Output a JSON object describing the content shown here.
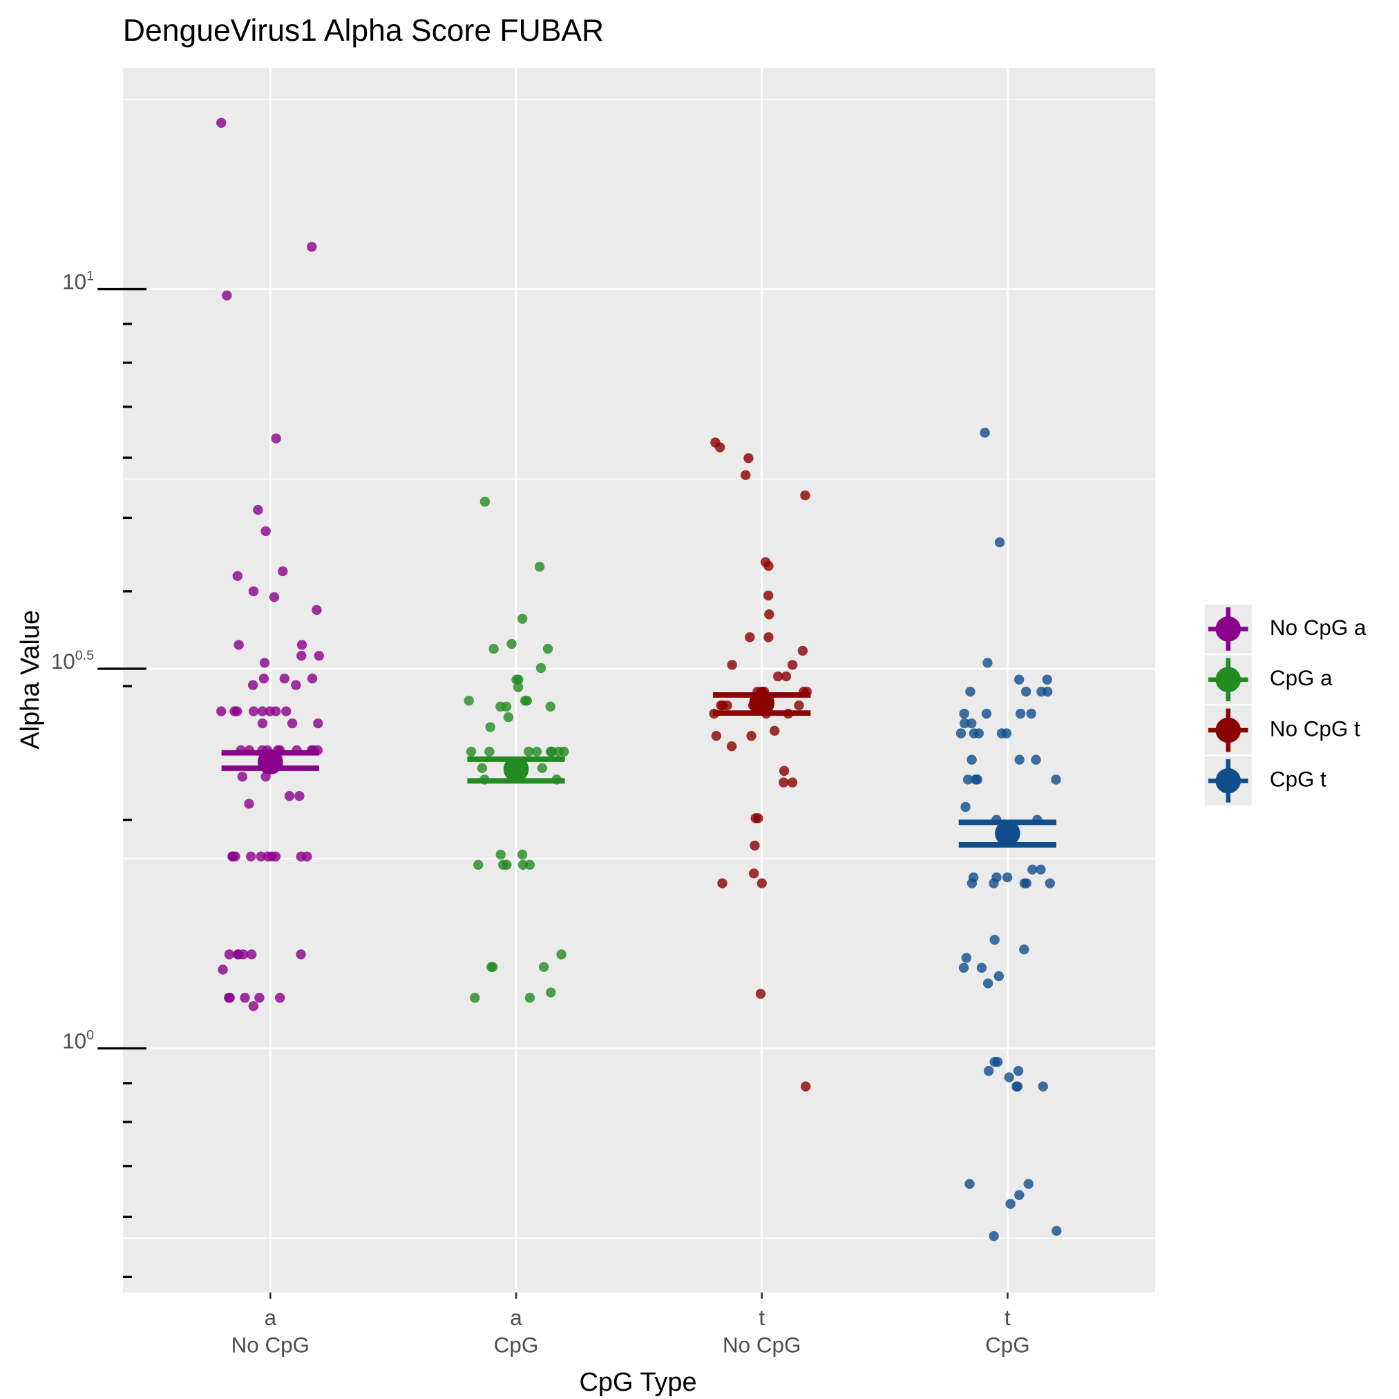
{
  "chart_data": {
    "type": "strip",
    "title": "DengueVirus1 Alpha Score FUBAR",
    "x_label": "CpG Type",
    "y_label": "Alpha Value",
    "categories": [
      [
        "a",
        "No CpG"
      ],
      [
        "a",
        "CpG"
      ],
      [
        "t",
        "No CpG"
      ],
      [
        "t",
        "CpG"
      ]
    ],
    "log_y": true,
    "grid": true,
    "legend_position": "right",
    "ylim": [
      0.4772,
      19.57
    ],
    "yticks": [
      {
        "value": 1,
        "label": "10^0"
      },
      {
        "value": 3.1623,
        "label": "10^0.5"
      },
      {
        "value": 10,
        "label": "10^1"
      }
    ],
    "yminorticks": [
      0.5,
      0.6,
      0.7,
      0.8,
      0.9,
      2,
      3,
      4,
      5,
      6,
      7,
      8,
      9
    ],
    "yminorgrid": [
      0.5623,
      1.7783,
      5.6234,
      17.783
    ],
    "series": [
      {
        "name": "No CpG a",
        "color": "#8b008b",
        "mean": 2.385,
        "ci": [
          2.339,
          2.451
        ],
        "values": [
          16.56,
          11.37,
          9.81,
          6.36,
          5.12,
          4.8,
          4.25,
          4.19,
          4.0,
          3.93,
          3.78,
          3.4,
          3.4,
          3.29,
          3.29,
          3.22,
          3.07,
          3.07,
          3.07,
          3.01,
          3.01,
          2.78,
          2.78,
          2.78,
          2.78,
          2.78,
          2.78,
          2.78,
          2.78,
          2.68,
          2.68,
          2.68,
          2.47,
          2.47,
          2.47,
          2.47,
          2.47,
          2.47,
          2.47,
          2.47,
          2.47,
          2.47,
          2.28,
          2.28,
          2.15,
          2.15,
          2.1,
          1.79,
          1.79,
          1.79,
          1.79,
          1.79,
          1.79,
          1.79,
          1.79,
          1.79,
          1.79,
          1.33,
          1.33,
          1.33,
          1.33,
          1.33,
          1.33,
          1.27,
          1.166,
          1.166,
          1.166,
          1.166,
          1.166,
          1.137
        ]
      },
      {
        "name": "CpG a",
        "color": "#228b22",
        "mean": 2.333,
        "ci": [
          2.251,
          2.404
        ],
        "values": [
          5.25,
          4.31,
          3.68,
          3.41,
          3.36,
          3.36,
          3.17,
          3.06,
          3.06,
          2.99,
          2.87,
          2.87,
          2.87,
          2.82,
          2.82,
          2.82,
          2.73,
          2.65,
          2.46,
          2.46,
          2.46,
          2.46,
          2.46,
          2.46,
          2.46,
          2.46,
          2.34,
          2.34,
          2.26,
          2.26,
          1.8,
          1.8,
          1.745,
          1.745,
          1.745,
          1.745,
          1.745,
          1.33,
          1.28,
          1.28,
          1.28,
          1.185,
          1.166,
          1.166
        ]
      },
      {
        "name": "No CpG t",
        "color": "#8b0000",
        "mean": 2.85,
        "ci": [
          2.765,
          2.921
        ],
        "values": [
          6.28,
          6.19,
          5.99,
          5.69,
          5.35,
          4.37,
          4.32,
          3.95,
          3.73,
          3.48,
          3.48,
          3.34,
          3.2,
          3.2,
          3.09,
          3.09,
          2.95,
          2.95,
          2.95,
          2.95,
          2.95,
          2.95,
          2.83,
          2.83,
          2.83,
          2.83,
          2.83,
          2.83,
          2.76,
          2.76,
          2.76,
          2.62,
          2.58,
          2.58,
          2.5,
          2.32,
          2.24,
          2.24,
          2.01,
          2.01,
          1.85,
          1.7,
          1.65,
          1.65,
          1.18,
          0.891
        ]
      },
      {
        "name": "CpG t",
        "color": "#104e8b",
        "mean": 1.92,
        "ci": [
          1.854,
          1.985
        ],
        "values": [
          6.47,
          4.64,
          3.22,
          3.06,
          3.06,
          2.95,
          2.95,
          2.95,
          2.95,
          2.76,
          2.76,
          2.76,
          2.76,
          2.68,
          2.68,
          2.6,
          2.6,
          2.6,
          2.6,
          2.6,
          2.4,
          2.4,
          2.4,
          2.26,
          2.26,
          2.26,
          2.26,
          2.08,
          2.0,
          2.0,
          1.72,
          1.72,
          1.68,
          1.68,
          1.68,
          1.65,
          1.65,
          1.65,
          1.65,
          1.65,
          1.39,
          1.35,
          1.316,
          1.277,
          1.277,
          1.245,
          1.218,
          0.96,
          0.96,
          0.934,
          0.934,
          0.916,
          0.891,
          0.891,
          0.891,
          0.663,
          0.663,
          0.641,
          0.624,
          0.575,
          0.566
        ]
      }
    ]
  }
}
